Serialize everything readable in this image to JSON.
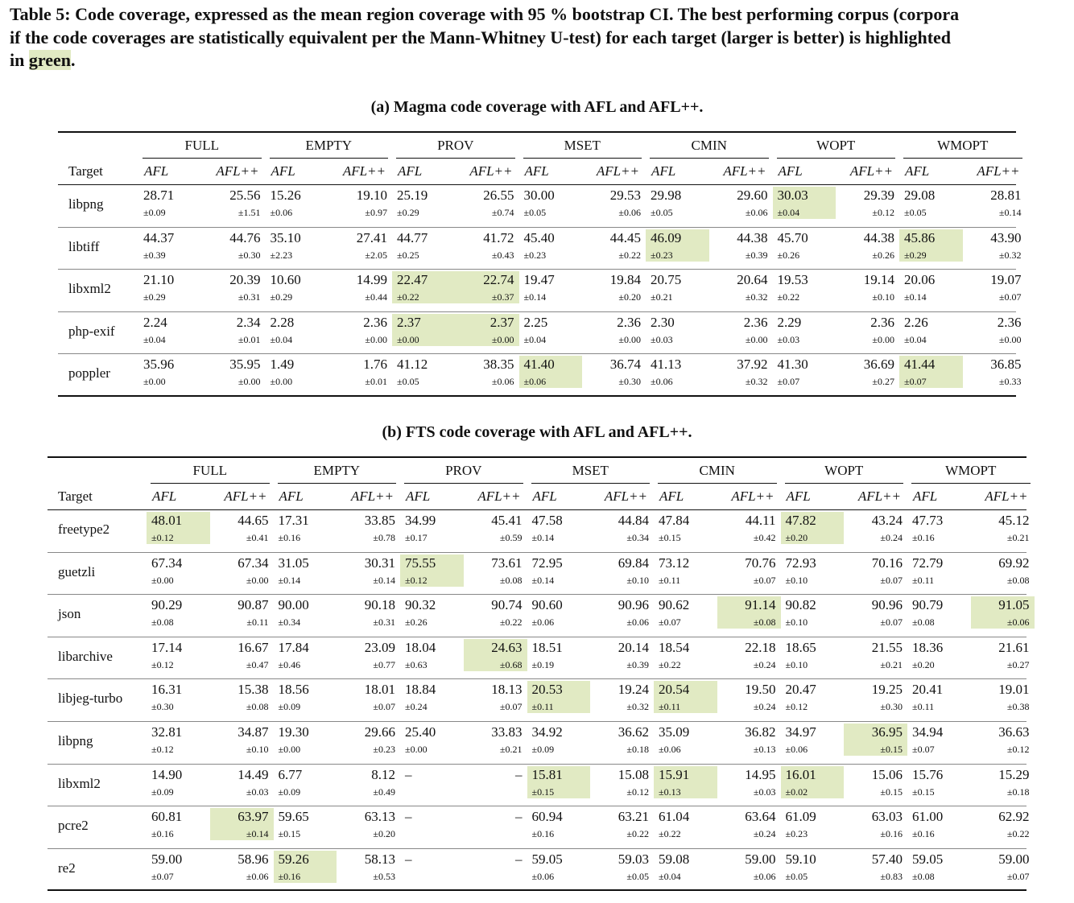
{
  "caption": {
    "lines": [
      "Table 5: Code coverage, expressed as the mean region coverage with 95 % bootstrap CI. The best performing corpus (corpora",
      "if the code coverages are statistically equivalent per the Mann-Whitney U-test) for each target (larger is better) is highlighted"
    ],
    "prefix": "in ",
    "highlight_word": "green",
    "suffix": "."
  },
  "colors": {
    "highlight": "#e1eac3",
    "rule": "#111111"
  },
  "column_groups": [
    "FULL",
    "EMPTY",
    "PROV",
    "MSET",
    "CMIN",
    "WOPT",
    "WMOPT"
  ],
  "fuzzers": [
    "AFL",
    "AFL++"
  ],
  "target_header": "Target",
  "tables": [
    {
      "title": "(a) Magma code coverage with AFL and AFL++.",
      "rows": [
        {
          "target": "libpng",
          "cells": [
            {
              "m": "28.71",
              "s": "±0.09"
            },
            {
              "m": "25.56",
              "s": "±1.51"
            },
            {
              "m": "15.26",
              "s": "±0.06"
            },
            {
              "m": "19.10",
              "s": "±0.97"
            },
            {
              "m": "25.19",
              "s": "±0.29"
            },
            {
              "m": "26.55",
              "s": "±0.74"
            },
            {
              "m": "30.00",
              "s": "±0.05"
            },
            {
              "m": "29.53",
              "s": "±0.06"
            },
            {
              "m": "29.98",
              "s": "±0.05"
            },
            {
              "m": "29.60",
              "s": "±0.06"
            },
            {
              "m": "30.03",
              "s": "±0.04",
              "best": true
            },
            {
              "m": "29.39",
              "s": "±0.12"
            },
            {
              "m": "29.08",
              "s": "±0.05"
            },
            {
              "m": "28.81",
              "s": "±0.14"
            }
          ]
        },
        {
          "target": "libtiff",
          "cells": [
            {
              "m": "44.37",
              "s": "±0.39"
            },
            {
              "m": "44.76",
              "s": "±0.30"
            },
            {
              "m": "35.10",
              "s": "±2.23"
            },
            {
              "m": "27.41",
              "s": "±2.05"
            },
            {
              "m": "44.77",
              "s": "±0.25"
            },
            {
              "m": "41.72",
              "s": "±0.43"
            },
            {
              "m": "45.40",
              "s": "±0.23"
            },
            {
              "m": "44.45",
              "s": "±0.22"
            },
            {
              "m": "46.09",
              "s": "±0.23",
              "best": true
            },
            {
              "m": "44.38",
              "s": "±0.39"
            },
            {
              "m": "45.70",
              "s": "±0.26"
            },
            {
              "m": "44.38",
              "s": "±0.26"
            },
            {
              "m": "45.86",
              "s": "±0.29",
              "best": true
            },
            {
              "m": "43.90",
              "s": "±0.32"
            }
          ]
        },
        {
          "target": "libxml2",
          "cells": [
            {
              "m": "21.10",
              "s": "±0.29"
            },
            {
              "m": "20.39",
              "s": "±0.31"
            },
            {
              "m": "10.60",
              "s": "±0.29"
            },
            {
              "m": "14.99",
              "s": "±0.44"
            },
            {
              "m": "22.47",
              "s": "±0.22",
              "best": true
            },
            {
              "m": "22.74",
              "s": "±0.37",
              "best": true
            },
            {
              "m": "19.47",
              "s": "±0.14"
            },
            {
              "m": "19.84",
              "s": "±0.20"
            },
            {
              "m": "20.75",
              "s": "±0.21"
            },
            {
              "m": "20.64",
              "s": "±0.32"
            },
            {
              "m": "19.53",
              "s": "±0.22"
            },
            {
              "m": "19.14",
              "s": "±0.10"
            },
            {
              "m": "20.06",
              "s": "±0.14"
            },
            {
              "m": "19.07",
              "s": "±0.07"
            }
          ]
        },
        {
          "target": "php-exif",
          "cells": [
            {
              "m": "2.24",
              "s": "±0.04"
            },
            {
              "m": "2.34",
              "s": "±0.01"
            },
            {
              "m": "2.28",
              "s": "±0.04"
            },
            {
              "m": "2.36",
              "s": "±0.00"
            },
            {
              "m": "2.37",
              "s": "±0.00",
              "best": true
            },
            {
              "m": "2.37",
              "s": "±0.00",
              "best": true
            },
            {
              "m": "2.25",
              "s": "±0.04"
            },
            {
              "m": "2.36",
              "s": "±0.00"
            },
            {
              "m": "2.30",
              "s": "±0.03"
            },
            {
              "m": "2.36",
              "s": "±0.00"
            },
            {
              "m": "2.29",
              "s": "±0.03"
            },
            {
              "m": "2.36",
              "s": "±0.00"
            },
            {
              "m": "2.26",
              "s": "±0.04"
            },
            {
              "m": "2.36",
              "s": "±0.00"
            }
          ]
        },
        {
          "target": "poppler",
          "cells": [
            {
              "m": "35.96",
              "s": "±0.00"
            },
            {
              "m": "35.95",
              "s": "±0.00"
            },
            {
              "m": "1.49",
              "s": "±0.00"
            },
            {
              "m": "1.76",
              "s": "±0.01"
            },
            {
              "m": "41.12",
              "s": "±0.05"
            },
            {
              "m": "38.35",
              "s": "±0.06"
            },
            {
              "m": "41.40",
              "s": "±0.06",
              "best": true
            },
            {
              "m": "36.74",
              "s": "±0.30"
            },
            {
              "m": "41.13",
              "s": "±0.06"
            },
            {
              "m": "37.92",
              "s": "±0.32"
            },
            {
              "m": "41.30",
              "s": "±0.07"
            },
            {
              "m": "36.69",
              "s": "±0.27"
            },
            {
              "m": "41.44",
              "s": "±0.07",
              "best": true
            },
            {
              "m": "36.85",
              "s": "±0.33"
            }
          ]
        }
      ]
    },
    {
      "title": "(b) FTS code coverage with AFL and AFL++.",
      "rows": [
        {
          "target": "freetype2",
          "cells": [
            {
              "m": "48.01",
              "s": "±0.12",
              "best": true
            },
            {
              "m": "44.65",
              "s": "±0.41"
            },
            {
              "m": "17.31",
              "s": "±0.16"
            },
            {
              "m": "33.85",
              "s": "±0.78"
            },
            {
              "m": "34.99",
              "s": "±0.17"
            },
            {
              "m": "45.41",
              "s": "±0.59"
            },
            {
              "m": "47.58",
              "s": "±0.14"
            },
            {
              "m": "44.84",
              "s": "±0.34"
            },
            {
              "m": "47.84",
              "s": "±0.15"
            },
            {
              "m": "44.11",
              "s": "±0.42"
            },
            {
              "m": "47.82",
              "s": "±0.20",
              "best": true
            },
            {
              "m": "43.24",
              "s": "±0.24"
            },
            {
              "m": "47.73",
              "s": "±0.16"
            },
            {
              "m": "45.12",
              "s": "±0.21"
            }
          ]
        },
        {
          "target": "guetzli",
          "cells": [
            {
              "m": "67.34",
              "s": "±0.00"
            },
            {
              "m": "67.34",
              "s": "±0.00"
            },
            {
              "m": "31.05",
              "s": "±0.14"
            },
            {
              "m": "30.31",
              "s": "±0.14"
            },
            {
              "m": "75.55",
              "s": "±0.12",
              "best": true
            },
            {
              "m": "73.61",
              "s": "±0.08"
            },
            {
              "m": "72.95",
              "s": "±0.14"
            },
            {
              "m": "69.84",
              "s": "±0.10"
            },
            {
              "m": "73.12",
              "s": "±0.11"
            },
            {
              "m": "70.76",
              "s": "±0.07"
            },
            {
              "m": "72.93",
              "s": "±0.10"
            },
            {
              "m": "70.16",
              "s": "±0.07"
            },
            {
              "m": "72.79",
              "s": "±0.11"
            },
            {
              "m": "69.92",
              "s": "±0.08"
            }
          ]
        },
        {
          "target": "json",
          "cells": [
            {
              "m": "90.29",
              "s": "±0.08"
            },
            {
              "m": "90.87",
              "s": "±0.11"
            },
            {
              "m": "90.00",
              "s": "±0.34"
            },
            {
              "m": "90.18",
              "s": "±0.31"
            },
            {
              "m": "90.32",
              "s": "±0.26"
            },
            {
              "m": "90.74",
              "s": "±0.22"
            },
            {
              "m": "90.60",
              "s": "±0.06"
            },
            {
              "m": "90.96",
              "s": "±0.06"
            },
            {
              "m": "90.62",
              "s": "±0.07"
            },
            {
              "m": "91.14",
              "s": "±0.08",
              "best": true
            },
            {
              "m": "90.82",
              "s": "±0.10"
            },
            {
              "m": "90.96",
              "s": "±0.07"
            },
            {
              "m": "90.79",
              "s": "±0.08"
            },
            {
              "m": "91.05",
              "s": "±0.06",
              "best": true
            }
          ]
        },
        {
          "target": "libarchive",
          "cells": [
            {
              "m": "17.14",
              "s": "±0.12"
            },
            {
              "m": "16.67",
              "s": "±0.47"
            },
            {
              "m": "17.84",
              "s": "±0.46"
            },
            {
              "m": "23.09",
              "s": "±0.77"
            },
            {
              "m": "18.04",
              "s": "±0.63"
            },
            {
              "m": "24.63",
              "s": "±0.68",
              "best": true
            },
            {
              "m": "18.51",
              "s": "±0.19"
            },
            {
              "m": "20.14",
              "s": "±0.39"
            },
            {
              "m": "18.54",
              "s": "±0.22"
            },
            {
              "m": "22.18",
              "s": "±0.24"
            },
            {
              "m": "18.65",
              "s": "±0.10"
            },
            {
              "m": "21.55",
              "s": "±0.21"
            },
            {
              "m": "18.36",
              "s": "±0.20"
            },
            {
              "m": "21.61",
              "s": "±0.27"
            }
          ]
        },
        {
          "target": "libjeg-turbo",
          "cells": [
            {
              "m": "16.31",
              "s": "±0.30"
            },
            {
              "m": "15.38",
              "s": "±0.08"
            },
            {
              "m": "18.56",
              "s": "±0.09"
            },
            {
              "m": "18.01",
              "s": "±0.07"
            },
            {
              "m": "18.84",
              "s": "±0.24"
            },
            {
              "m": "18.13",
              "s": "±0.07"
            },
            {
              "m": "20.53",
              "s": "±0.11",
              "best": true
            },
            {
              "m": "19.24",
              "s": "±0.32"
            },
            {
              "m": "20.54",
              "s": "±0.11",
              "best": true
            },
            {
              "m": "19.50",
              "s": "±0.24"
            },
            {
              "m": "20.47",
              "s": "±0.12"
            },
            {
              "m": "19.25",
              "s": "±0.30"
            },
            {
              "m": "20.41",
              "s": "±0.11"
            },
            {
              "m": "19.01",
              "s": "±0.38"
            }
          ]
        },
        {
          "target": "libpng",
          "cells": [
            {
              "m": "32.81",
              "s": "±0.12"
            },
            {
              "m": "34.87",
              "s": "±0.10"
            },
            {
              "m": "19.30",
              "s": "±0.00"
            },
            {
              "m": "29.66",
              "s": "±0.23"
            },
            {
              "m": "25.40",
              "s": "±0.00"
            },
            {
              "m": "33.83",
              "s": "±0.21"
            },
            {
              "m": "34.92",
              "s": "±0.09"
            },
            {
              "m": "36.62",
              "s": "±0.18"
            },
            {
              "m": "35.09",
              "s": "±0.06"
            },
            {
              "m": "36.82",
              "s": "±0.13"
            },
            {
              "m": "34.97",
              "s": "±0.06"
            },
            {
              "m": "36.95",
              "s": "±0.15",
              "best": true
            },
            {
              "m": "34.94",
              "s": "±0.07"
            },
            {
              "m": "36.63",
              "s": "±0.12"
            }
          ]
        },
        {
          "target": "libxml2",
          "cells": [
            {
              "m": "14.90",
              "s": "±0.09"
            },
            {
              "m": "14.49",
              "s": "±0.03"
            },
            {
              "m": "6.77",
              "s": "±0.09"
            },
            {
              "m": "8.12",
              "s": "±0.49"
            },
            {
              "m": "–",
              "s": ""
            },
            {
              "m": "–",
              "s": ""
            },
            {
              "m": "15.81",
              "s": "±0.15",
              "best": true
            },
            {
              "m": "15.08",
              "s": "±0.12"
            },
            {
              "m": "15.91",
              "s": "±0.13",
              "best": true
            },
            {
              "m": "14.95",
              "s": "±0.03"
            },
            {
              "m": "16.01",
              "s": "±0.02",
              "best": true
            },
            {
              "m": "15.06",
              "s": "±0.15"
            },
            {
              "m": "15.76",
              "s": "±0.15"
            },
            {
              "m": "15.29",
              "s": "±0.18"
            }
          ]
        },
        {
          "target": "pcre2",
          "cells": [
            {
              "m": "60.81",
              "s": "±0.16"
            },
            {
              "m": "63.97",
              "s": "±0.14",
              "best": true
            },
            {
              "m": "59.65",
              "s": "±0.15"
            },
            {
              "m": "63.13",
              "s": "±0.20"
            },
            {
              "m": "–",
              "s": ""
            },
            {
              "m": "–",
              "s": ""
            },
            {
              "m": "60.94",
              "s": "±0.16"
            },
            {
              "m": "63.21",
              "s": "±0.22"
            },
            {
              "m": "61.04",
              "s": "±0.22"
            },
            {
              "m": "63.64",
              "s": "±0.24"
            },
            {
              "m": "61.09",
              "s": "±0.23"
            },
            {
              "m": "63.03",
              "s": "±0.16"
            },
            {
              "m": "61.00",
              "s": "±0.16"
            },
            {
              "m": "62.92",
              "s": "±0.22"
            }
          ]
        },
        {
          "target": "re2",
          "cells": [
            {
              "m": "59.00",
              "s": "±0.07"
            },
            {
              "m": "58.96",
              "s": "±0.06"
            },
            {
              "m": "59.26",
              "s": "±0.16",
              "best": true
            },
            {
              "m": "58.13",
              "s": "±0.53"
            },
            {
              "m": "–",
              "s": ""
            },
            {
              "m": "–",
              "s": ""
            },
            {
              "m": "59.05",
              "s": "±0.06"
            },
            {
              "m": "59.03",
              "s": "±0.05"
            },
            {
              "m": "59.08",
              "s": "±0.04"
            },
            {
              "m": "59.00",
              "s": "±0.06"
            },
            {
              "m": "59.10",
              "s": "±0.05"
            },
            {
              "m": "57.40",
              "s": "±0.83"
            },
            {
              "m": "59.05",
              "s": "±0.08"
            },
            {
              "m": "59.00",
              "s": "±0.07"
            }
          ]
        }
      ]
    }
  ]
}
